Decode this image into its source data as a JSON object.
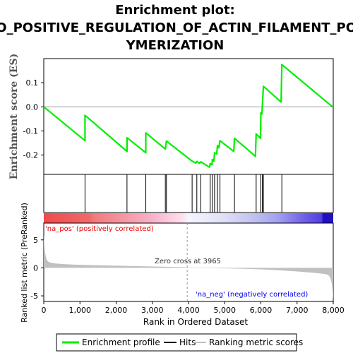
{
  "chart_data": {
    "type": "line",
    "title_lines": [
      "Enrichment plot:",
      "GO_POSITIVE_REGULATION_OF_ACTIN_FILAMENT_POL",
      "YMERIZATION"
    ],
    "es_panel": {
      "ylabel": "Enrichment score (ES)",
      "ylim": [
        -0.28,
        0.2
      ],
      "yticks": [
        "0.1",
        "0.0",
        "-0.1",
        "-0.2"
      ],
      "ytick_values": [
        0.1,
        0.0,
        -0.1,
        -0.2
      ],
      "series": [
        {
          "name": "Enrichment profile",
          "color": "#00ee00",
          "x": [
            0,
            1140,
            1140,
            2300,
            2300,
            2820,
            2820,
            3360,
            3380,
            3390,
            4100,
            4200,
            4230,
            4300,
            4340,
            4580,
            4600,
            4650,
            4660,
            4700,
            4720,
            4780,
            4800,
            4840,
            4870,
            5250,
            5270,
            5850,
            5870,
            5990,
            6000,
            6030,
            6040,
            6070,
            6560,
            6580,
            7980
          ],
          "y": [
            0.0,
            -0.14,
            -0.035,
            -0.185,
            -0.128,
            -0.19,
            -0.108,
            -0.175,
            -0.153,
            -0.142,
            -0.225,
            -0.233,
            -0.226,
            -0.234,
            -0.228,
            -0.25,
            -0.235,
            -0.24,
            -0.218,
            -0.225,
            -0.19,
            -0.195,
            -0.16,
            -0.17,
            -0.14,
            -0.185,
            -0.13,
            -0.205,
            -0.112,
            -0.13,
            -0.025,
            -0.03,
            0.005,
            0.085,
            0.02,
            0.175,
            0.0
          ]
        }
      ]
    },
    "hits_x": [
      1140,
      2300,
      2820,
      3360,
      3390,
      4100,
      4230,
      4340,
      4600,
      4660,
      4720,
      4800,
      4870,
      5270,
      5870,
      6000,
      6040,
      6070,
      6580
    ],
    "heatmap_labels": {
      "pos": "'na_pos' (positively correlated)",
      "neg": "'na_neg' (negatively correlated)",
      "pos_color": "#ff0000",
      "neg_color": "#0000ff"
    },
    "rank_panel": {
      "ylabel": "Ranked list metric (PreRanked)",
      "ylim": [
        -6,
        8
      ],
      "yticks": [
        "5",
        "0",
        "-5"
      ],
      "ytick_values": [
        5,
        0,
        -5
      ],
      "zero_cross_label": "Zero cross at 3965",
      "zero_cross": 3965,
      "fill_color": "#c0c0c0"
    },
    "xaxis": {
      "xlabel": "Rank in Ordered Dataset",
      "xlim": [
        0,
        8000
      ],
      "xticks": [
        "0",
        "1,000",
        "2,000",
        "3,000",
        "4,000",
        "5,000",
        "6,000",
        "7,000",
        "8,000"
      ],
      "xtick_values": [
        0,
        1000,
        2000,
        3000,
        4000,
        5000,
        6000,
        7000,
        8000
      ]
    },
    "legend": {
      "placement": "bottom",
      "items": [
        {
          "label": "Enrichment profile",
          "color": "#00ee00"
        },
        {
          "label": "Hits",
          "color": "#000000"
        },
        {
          "label": "Ranking metric scores",
          "color": "#c0c0c0"
        }
      ]
    }
  }
}
